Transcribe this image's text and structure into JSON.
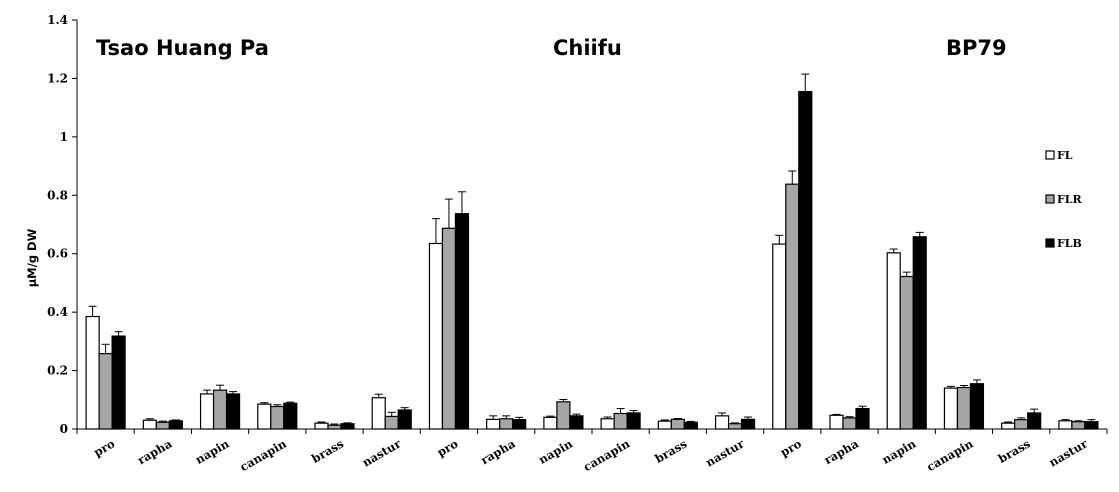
{
  "chart_data": {
    "type": "bar",
    "ylabel": "μM/g DW",
    "ylim": [
      0,
      1.4
    ],
    "yticks": [
      "0",
      "0.2",
      "0.4",
      "0.6",
      "0.8",
      "1",
      "1.2",
      "1.4"
    ],
    "grid": false,
    "legend_position": "right",
    "group_titles": [
      "Tsao Huang Pa",
      "Chiifu",
      "BP79"
    ],
    "categories": [
      "pro",
      "rapha",
      "napin",
      "canapin",
      "brass",
      "nastur",
      "pro",
      "rapha",
      "napin",
      "canapin",
      "brass",
      "nastur",
      "pro",
      "rapha",
      "napin",
      "canapin",
      "brass",
      "nastur"
    ],
    "series": [
      {
        "name": "FL",
        "color": "#ffffff",
        "values": [
          0.385,
          0.03,
          0.12,
          0.085,
          0.02,
          0.107,
          0.635,
          0.033,
          0.04,
          0.035,
          0.027,
          0.045,
          0.633,
          0.047,
          0.603,
          0.14,
          0.02,
          0.028
        ],
        "errors": [
          0.035,
          0.005,
          0.013,
          0.005,
          0.004,
          0.012,
          0.085,
          0.012,
          0.004,
          0.006,
          0.004,
          0.01,
          0.03,
          0.003,
          0.013,
          0.006,
          0.004,
          0.004
        ]
      },
      {
        "name": "FLR",
        "color": "#a6a6a6",
        "values": [
          0.258,
          0.023,
          0.133,
          0.077,
          0.013,
          0.043,
          0.687,
          0.035,
          0.093,
          0.053,
          0.033,
          0.018,
          0.838,
          0.038,
          0.522,
          0.142,
          0.032,
          0.025
        ],
        "errors": [
          0.032,
          0.004,
          0.017,
          0.006,
          0.004,
          0.014,
          0.1,
          0.01,
          0.008,
          0.017,
          0.003,
          0.003,
          0.045,
          0.004,
          0.015,
          0.007,
          0.006,
          0.003
        ]
      },
      {
        "name": "FLB",
        "color": "#000000",
        "values": [
          0.318,
          0.028,
          0.12,
          0.088,
          0.018,
          0.065,
          0.737,
          0.032,
          0.045,
          0.055,
          0.023,
          0.033,
          1.155,
          0.07,
          0.658,
          0.155,
          0.055,
          0.025
        ],
        "errors": [
          0.015,
          0.003,
          0.008,
          0.004,
          0.003,
          0.008,
          0.075,
          0.008,
          0.006,
          0.008,
          0.003,
          0.008,
          0.06,
          0.008,
          0.015,
          0.013,
          0.013,
          0.007
        ]
      }
    ]
  }
}
